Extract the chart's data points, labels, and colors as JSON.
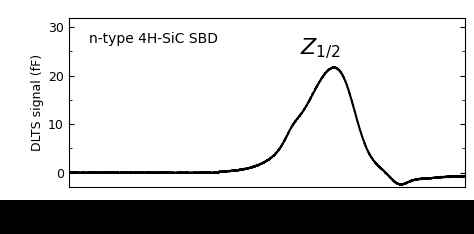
{
  "title": "",
  "xlabel": "",
  "ylabel": "DLTS signal (fF)",
  "annotation_text": "$Z_{1/2}$",
  "annotation_fontsize": 16,
  "label_text": "n-type 4H-SiC SBD",
  "label_fontsize": 10,
  "ylim": [
    -3,
    32
  ],
  "yticks": [
    0,
    10,
    20,
    30
  ],
  "line_color": "#000000",
  "background_color": "#ffffff",
  "linewidth": 1.5,
  "bottom_bar_color": "#000000"
}
